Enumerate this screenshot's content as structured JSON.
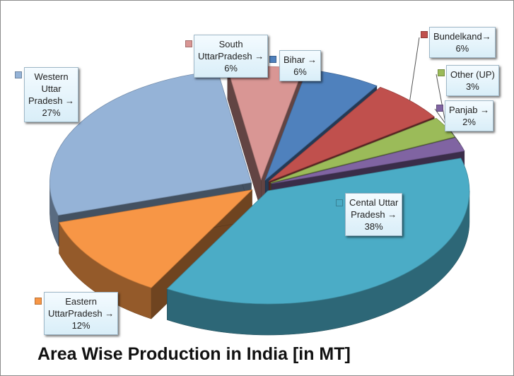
{
  "chart_data": {
    "type": "pie",
    "style": "3d-exploded",
    "title": "Area Wise Production in India [in MT]",
    "slices": [
      {
        "name": "Bihar",
        "label": "Bihar →\n6%",
        "value": 6,
        "color": "#4f81bd"
      },
      {
        "name": "Bundelkand",
        "label": "Bundelkand→\n6%",
        "value": 6,
        "color": "#c0504d"
      },
      {
        "name": "Other (UP)",
        "label": "Other (UP)\n3%",
        "value": 3,
        "color": "#9bbb59"
      },
      {
        "name": "Panjab",
        "label": "Panjab →\n2%",
        "value": 2,
        "color": "#8064a2"
      },
      {
        "name": "Cental Uttar Pradesh",
        "label": "Cental Uttar\nPradesh →\n38%",
        "value": 38,
        "color": "#4bacc6"
      },
      {
        "name": "Eastern UttarPradesh",
        "label": "Eastern\nUttarPradesh →\n12%",
        "value": 12,
        "color": "#f79646"
      },
      {
        "name": "Western Uttar Pradesh",
        "label": "Western\nUttar\nPradesh →\n27%",
        "value": 27,
        "color": "#95b3d7"
      },
      {
        "name": "South UttarPradesh",
        "label": "South\nUttarPradesh →\n6%",
        "value": 6,
        "color": "#d99694"
      }
    ],
    "legend": "callout-labels"
  }
}
